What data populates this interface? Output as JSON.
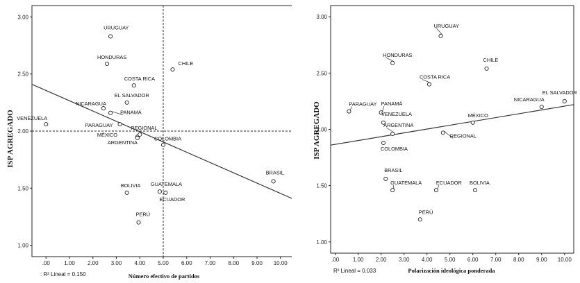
{
  "chart_data": [
    {
      "type": "scatter",
      "xlabel": "Número efectivo de partidos",
      "ylabel": "ISP AGREGADO",
      "r2_text": ": R² Lineal = 0.150",
      "xlim": [
        -0.6,
        10.6
      ],
      "ylim": [
        0.9,
        3.1
      ],
      "xticks": [
        ".00",
        "1.00",
        "2.00",
        "3.00",
        "4.00",
        "5.00",
        "6.00",
        "7.00",
        "8.00",
        "9.00",
        "10.00"
      ],
      "yticks": [
        "1.00",
        "1.50",
        "2.00",
        "2.50",
        "3.00"
      ],
      "ref_lines": {
        "x": 5.0,
        "y": 2.0
      },
      "fit_line": {
        "x": [
          -0.6,
          10.6
        ],
        "y": [
          2.41,
          1.4
        ]
      },
      "points": [
        {
          "label": "URUGUAY",
          "x": 2.75,
          "y": 2.83
        },
        {
          "label": "HONDURAS",
          "x": 2.6,
          "y": 2.59
        },
        {
          "label": "CHILE",
          "x": 5.4,
          "y": 2.54
        },
        {
          "label": "COSTA RICA",
          "x": 3.75,
          "y": 2.4
        },
        {
          "label": "EL SALVADOR",
          "x": 3.45,
          "y": 2.25
        },
        {
          "label": "NICARAGUA",
          "x": 2.45,
          "y": 2.2
        },
        {
          "label": "PANAMÁ",
          "x": 2.75,
          "y": 2.16
        },
        {
          "label": "PARAGUAY",
          "x": 3.15,
          "y": 2.06
        },
        {
          "label": "VENEZUELA",
          "x": 0.0,
          "y": 2.06
        },
        {
          "label": "MÉXICO",
          "x": 3.9,
          "y": 1.95
        },
        {
          "label": "REGIONAL",
          "x": 4.0,
          "y": 1.97
        },
        {
          "label": "ARGENTINA",
          "x": 3.9,
          "y": 1.94
        },
        {
          "label": "COLOMBIA",
          "x": 5.0,
          "y": 1.88
        },
        {
          "label": "BRASIL",
          "x": 9.7,
          "y": 1.56
        },
        {
          "label": "BOLIVIA",
          "x": 3.45,
          "y": 1.46
        },
        {
          "label": "GUATEMALA",
          "x": 4.85,
          "y": 1.47
        },
        {
          "label": "ECUADOR",
          "x": 5.1,
          "y": 1.46
        },
        {
          "label": "PERÚ",
          "x": 3.95,
          "y": 1.2
        }
      ]
    },
    {
      "type": "scatter",
      "xlabel": "Polarización ideológica ponderada",
      "ylabel": "ISP AGREGADO",
      "r2_text": "R² Lineal = 0.033",
      "xlim": [
        -0.2,
        10.4
      ],
      "ylim": [
        0.9,
        3.1
      ],
      "xticks": [
        ".00",
        "1.00",
        "2.00",
        "3.00",
        "4.00",
        "5.00",
        "6.00",
        "7.00",
        "8.00",
        "9.00",
        "10.00"
      ],
      "yticks": [
        "1.00",
        "1.50",
        "2.00",
        "2.50",
        "3.00"
      ],
      "fit_line": {
        "x": [
          -0.2,
          10.4
        ],
        "y": [
          1.86,
          2.22
        ]
      },
      "points": [
        {
          "label": "URUGUAY",
          "x": 4.6,
          "y": 2.83
        },
        {
          "label": "HONDURAS",
          "x": 2.5,
          "y": 2.59
        },
        {
          "label": "CHILE",
          "x": 6.6,
          "y": 2.54
        },
        {
          "label": "COSTA RICA",
          "x": 4.1,
          "y": 2.4
        },
        {
          "label": "EL SALVADOR",
          "x": 10.0,
          "y": 2.25
        },
        {
          "label": "NICARAGUA",
          "x": 9.0,
          "y": 2.2
        },
        {
          "label": "PARAGUAY",
          "x": 0.6,
          "y": 2.16
        },
        {
          "label": "PANAMÁ",
          "x": 2.0,
          "y": 2.15
        },
        {
          "label": "VENEZUELA",
          "x": 2.1,
          "y": 2.06
        },
        {
          "label": "MÉXICO",
          "x": 6.0,
          "y": 2.06
        },
        {
          "label": "ARGENTINA",
          "x": 2.5,
          "y": 1.96
        },
        {
          "label": "REGIONAL",
          "x": 4.7,
          "y": 1.97
        },
        {
          "label": "COLOMBIA",
          "x": 2.1,
          "y": 1.88
        },
        {
          "label": "BRASIL",
          "x": 2.2,
          "y": 1.56
        },
        {
          "label": "GUATEMALA",
          "x": 2.5,
          "y": 1.46
        },
        {
          "label": "ECUADOR",
          "x": 4.4,
          "y": 1.46
        },
        {
          "label": "BOLIVIA",
          "x": 6.1,
          "y": 1.46
        },
        {
          "label": "PERÚ",
          "x": 3.7,
          "y": 1.2
        }
      ]
    }
  ]
}
